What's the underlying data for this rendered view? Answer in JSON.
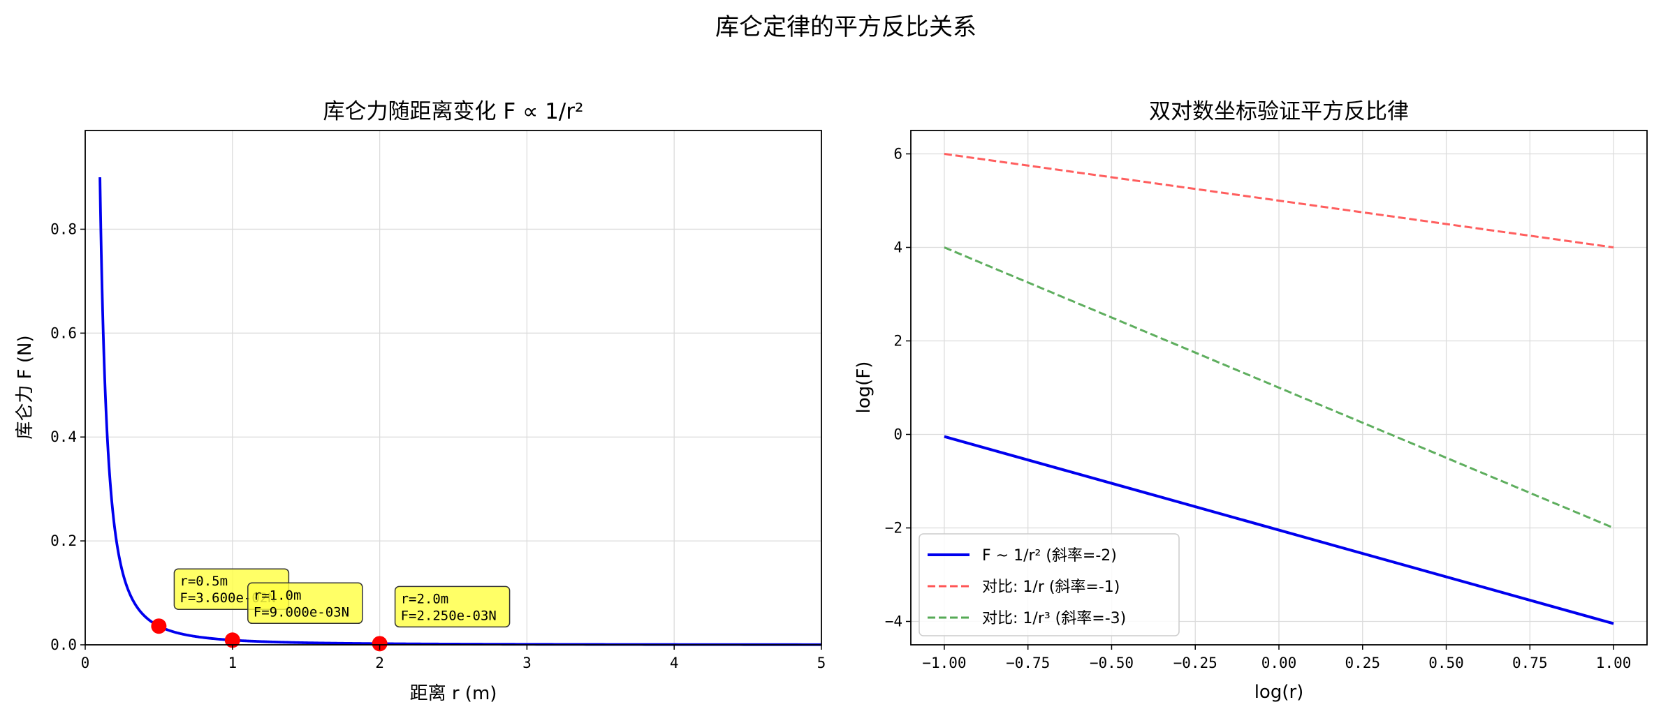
{
  "figure": {
    "suptitle": "库仑定律的平方反比关系"
  },
  "chart_data": [
    {
      "type": "line",
      "title": "库仑力随距离变化 F ∝ 1/r²",
      "xlabel": "距离 r (m)",
      "ylabel": "库仑力 F (N)",
      "xlim": [
        0,
        5
      ],
      "ylim": [
        0,
        0.99
      ],
      "xticks": [
        0,
        1,
        2,
        3,
        4,
        5
      ],
      "yticks": [
        0.0,
        0.2,
        0.4,
        0.6,
        0.8
      ],
      "xtick_labels": [
        "0",
        "1",
        "2",
        "3",
        "4",
        "5"
      ],
      "ytick_labels": [
        "0.0",
        "0.2",
        "0.4",
        "0.6",
        "0.8"
      ],
      "grid": true,
      "series": [
        {
          "formula": "F = 0.009 / r^2",
          "x_range": [
            0.1,
            5
          ],
          "color": "#0000ee",
          "style": "solid"
        }
      ],
      "highlight_points": [
        {
          "r": 0.5,
          "F": 0.036,
          "label_line1": "r=0.5m",
          "label_line2": "F=3.600e-02N"
        },
        {
          "r": 1.0,
          "F": 0.009,
          "label_line1": "r=1.0m",
          "label_line2": "F=9.000e-03N"
        },
        {
          "r": 2.0,
          "F": 0.00225,
          "label_line1": "r=2.0m",
          "label_line2": "F=2.250e-03N"
        }
      ],
      "colors": {
        "point": "#ff0000",
        "annotation_bg": "#ffff44"
      }
    },
    {
      "type": "line",
      "title": "双对数坐标验证平方反比律",
      "xlabel": "log(r)",
      "ylabel": "log(F)",
      "xlim": [
        -1.1,
        1.1
      ],
      "ylim": [
        -4.5,
        6.5
      ],
      "xticks": [
        -1.0,
        -0.75,
        -0.5,
        -0.25,
        0.0,
        0.25,
        0.5,
        0.75,
        1.0
      ],
      "yticks": [
        -4,
        -2,
        0,
        2,
        4,
        6
      ],
      "xtick_labels": [
        "−1.00",
        "−0.75",
        "−0.50",
        "−0.25",
        "0.00",
        "0.25",
        "0.50",
        "0.75",
        "1.00"
      ],
      "ytick_labels": [
        "−4",
        "−2",
        "0",
        "2",
        "4",
        "6"
      ],
      "grid": true,
      "legend_position": "lower-left",
      "series": [
        {
          "name": "F ~ 1/r² (斜率=-2)",
          "x": [
            -1.0,
            1.0
          ],
          "values": [
            -0.046,
            -4.046
          ],
          "color": "#0000ee",
          "style": "solid"
        },
        {
          "name": "对比: 1/r (斜率=-1)",
          "x": [
            -1.0,
            1.0
          ],
          "values": [
            6.0,
            4.0
          ],
          "color": "#ff5555",
          "style": "dashed"
        },
        {
          "name": "对比: 1/r³ (斜率=-3)",
          "x": [
            -1.0,
            1.0
          ],
          "values": [
            4.0,
            -2.0
          ],
          "color": "#55aa55",
          "style": "dashed"
        }
      ]
    }
  ]
}
